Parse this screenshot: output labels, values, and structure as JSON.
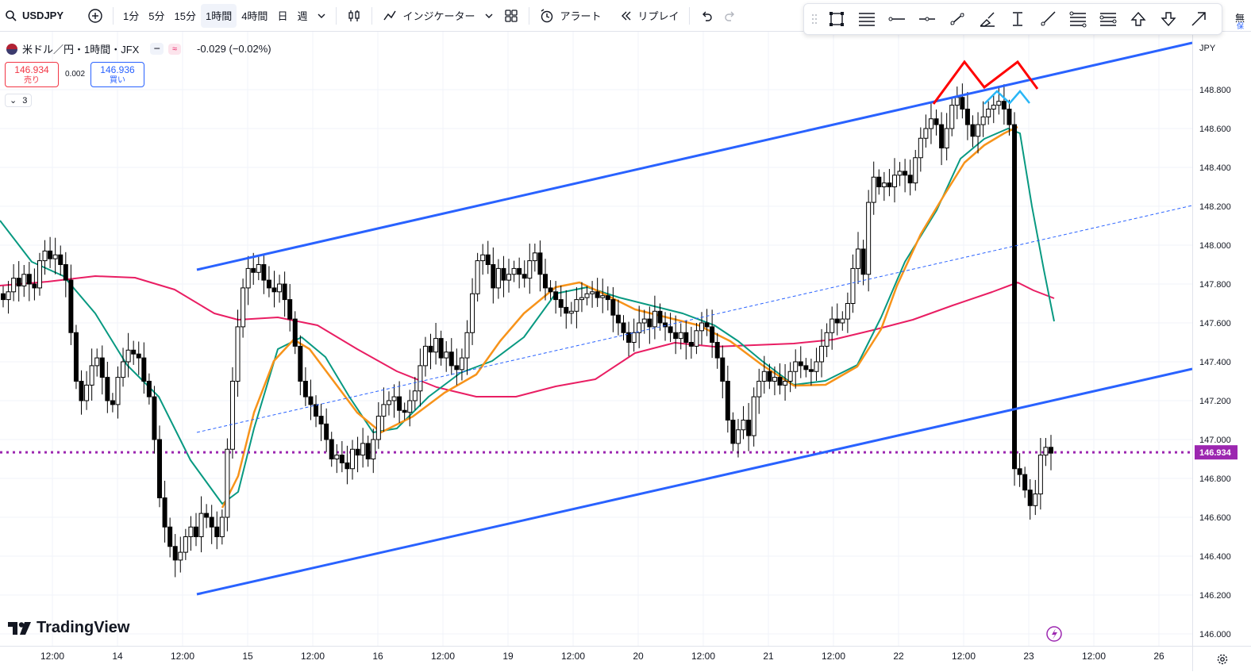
{
  "topbar": {
    "symbol": "USDJPY",
    "intervals": [
      "1分",
      "5分",
      "15分",
      "1時間",
      "4時間",
      "日",
      "週"
    ],
    "active_interval": "1時間",
    "indicators_label": "インジケーター",
    "alert_label": "アラート",
    "replay_label": "リプレイ",
    "right_cut_label": "無",
    "right_cut_sub": "保"
  },
  "legend": {
    "title": "米ドル／円・1時間・JFX",
    "change": "-0.029 (−0.02%)",
    "sell_price": "146.934",
    "sell_label": "売り",
    "buy_price": "146.936",
    "buy_label": "買い",
    "spread": "0.002",
    "indicator_count": "3",
    "pill_symbol": "≈"
  },
  "price_axis": {
    "currency": "JPY",
    "ticks": [
      "148.800",
      "148.600",
      "148.400",
      "148.200",
      "148.000",
      "147.800",
      "147.600",
      "147.400",
      "147.200",
      "147.000",
      "146.800",
      "146.600",
      "146.400",
      "146.200",
      "146.000"
    ],
    "current_price": "146.934",
    "current_color": "#9c27b0"
  },
  "time_axis": {
    "labels": [
      "12:00",
      "14",
      "12:00",
      "15",
      "12:00",
      "16",
      "12:00",
      "19",
      "12:00",
      "20",
      "12:00",
      "21",
      "12:00",
      "22",
      "12:00",
      "23",
      "12:00",
      "26"
    ]
  },
  "brand": {
    "logo_text": "TradingView"
  },
  "colors": {
    "up": "#ffffff",
    "down": "#000000",
    "channel": "#2962ff",
    "ema_fast": "#089981",
    "ema_mid": "#f7931a",
    "ma_slow": "#e91e63",
    "pattern_red": "#ff0000",
    "pattern_blue": "#29b6f6"
  },
  "chart_data": {
    "type": "candlestick",
    "symbol": "USDJPY",
    "ylim": [
      146.0,
      148.9
    ],
    "current_price": 146.934,
    "candles_close": [
      147.72,
      147.76,
      147.83,
      147.79,
      147.85,
      147.8,
      147.78,
      147.92,
      147.97,
      147.93,
      147.95,
      147.9,
      147.82,
      147.55,
      147.3,
      147.2,
      147.28,
      147.38,
      147.42,
      147.32,
      147.2,
      147.18,
      147.32,
      147.4,
      147.46,
      147.44,
      147.42,
      147.3,
      147.22,
      147.0,
      146.7,
      146.55,
      146.45,
      146.38,
      146.42,
      146.5,
      146.55,
      146.5,
      146.62,
      146.6,
      146.55,
      146.5,
      146.6,
      146.95,
      147.3,
      147.58,
      147.78,
      147.88,
      147.86,
      147.9,
      147.82,
      147.78,
      147.76,
      147.8,
      147.72,
      147.62,
      147.48,
      147.3,
      147.22,
      147.18,
      147.12,
      147.08,
      147.0,
      146.9,
      146.92,
      146.88,
      146.85,
      146.95,
      146.92,
      146.98,
      146.9,
      147.0,
      147.12,
      147.18,
      147.2,
      147.22,
      147.15,
      147.14,
      147.2,
      147.25,
      147.38,
      147.48,
      147.45,
      147.52,
      147.42,
      147.45,
      147.38,
      147.36,
      147.42,
      147.55,
      147.75,
      147.92,
      147.95,
      147.9,
      147.78,
      147.88,
      147.82,
      147.85,
      147.88,
      147.85,
      147.83,
      147.92,
      147.96,
      147.85,
      147.78,
      147.76,
      147.72,
      147.68,
      147.65,
      147.66,
      147.72,
      147.73,
      147.75,
      147.76,
      147.73,
      147.74,
      147.72,
      147.64,
      147.6,
      147.55,
      147.5,
      147.55,
      147.6,
      147.62,
      147.58,
      147.66,
      147.6,
      147.58,
      147.55,
      147.52,
      147.55,
      147.5,
      147.48,
      147.56,
      147.6,
      147.58,
      147.5,
      147.42,
      147.3,
      147.1,
      146.98,
      147.05,
      147.1,
      147.02,
      147.22,
      147.3,
      147.35,
      147.3,
      147.32,
      147.28,
      147.3,
      147.35,
      147.4,
      147.38,
      147.36,
      147.35,
      147.4,
      147.48,
      147.55,
      147.62,
      147.6,
      147.62,
      147.7,
      147.88,
      147.98,
      147.85,
      148.22,
      148.35,
      148.3,
      148.32,
      148.3,
      148.36,
      148.38,
      148.36,
      148.32,
      148.45,
      148.55,
      148.6,
      148.65,
      148.62,
      148.5,
      148.6,
      148.72,
      148.76,
      148.7,
      148.62,
      148.56,
      148.62,
      148.66,
      148.7,
      148.72,
      148.74,
      148.7,
      148.62,
      146.85,
      146.82,
      146.74,
      146.66,
      146.72,
      146.92,
      146.96,
      146.93
    ],
    "channel_upper": [
      [
        248,
        340
      ],
      [
        1502,
        54
      ]
    ],
    "channel_lower": [
      [
        248,
        749
      ],
      [
        1502,
        465
      ]
    ],
    "channel_mid": [
      [
        248,
        545
      ],
      [
        1502,
        259
      ]
    ],
    "ma_slow_points": [
      [
        0,
        360
      ],
      [
        60,
        355
      ],
      [
        120,
        348
      ],
      [
        170,
        350
      ],
      [
        220,
        365
      ],
      [
        270,
        395
      ],
      [
        300,
        403
      ],
      [
        350,
        400
      ],
      [
        400,
        410
      ],
      [
        450,
        440
      ],
      [
        500,
        468
      ],
      [
        550,
        488
      ],
      [
        600,
        500
      ],
      [
        650,
        500
      ],
      [
        700,
        487
      ],
      [
        750,
        478
      ],
      [
        800,
        445
      ],
      [
        850,
        432
      ],
      [
        900,
        437
      ],
      [
        950,
        435
      ],
      [
        1000,
        433
      ],
      [
        1050,
        428
      ],
      [
        1100,
        416
      ],
      [
        1150,
        403
      ],
      [
        1200,
        385
      ],
      [
        1250,
        368
      ],
      [
        1282,
        356
      ],
      [
        1302,
        366
      ],
      [
        1328,
        376
      ]
    ],
    "ema_fast_points": [
      [
        0,
        278
      ],
      [
        40,
        330
      ],
      [
        80,
        348
      ],
      [
        120,
        395
      ],
      [
        160,
        460
      ],
      [
        200,
        500
      ],
      [
        240,
        580
      ],
      [
        280,
        635
      ],
      [
        300,
        620
      ],
      [
        320,
        540
      ],
      [
        350,
        440
      ],
      [
        380,
        425
      ],
      [
        410,
        450
      ],
      [
        440,
        500
      ],
      [
        470,
        545
      ],
      [
        500,
        540
      ],
      [
        540,
        500
      ],
      [
        580,
        470
      ],
      [
        620,
        455
      ],
      [
        660,
        425
      ],
      [
        700,
        370
      ],
      [
        740,
        362
      ],
      [
        780,
        375
      ],
      [
        820,
        385
      ],
      [
        860,
        395
      ],
      [
        900,
        410
      ],
      [
        930,
        430
      ],
      [
        960,
        455
      ],
      [
        1000,
        485
      ],
      [
        1040,
        480
      ],
      [
        1080,
        460
      ],
      [
        1110,
        400
      ],
      [
        1140,
        330
      ],
      [
        1180,
        265
      ],
      [
        1210,
        200
      ],
      [
        1240,
        175
      ],
      [
        1270,
        162
      ],
      [
        1285,
        168
      ],
      [
        1300,
        260
      ],
      [
        1315,
        340
      ],
      [
        1328,
        405
      ]
    ],
    "ema_mid_points": [
      [
        280,
        640
      ],
      [
        300,
        600
      ],
      [
        320,
        520
      ],
      [
        345,
        455
      ],
      [
        370,
        428
      ],
      [
        390,
        440
      ],
      [
        420,
        480
      ],
      [
        450,
        520
      ],
      [
        480,
        545
      ],
      [
        520,
        525
      ],
      [
        560,
        495
      ],
      [
        600,
        472
      ],
      [
        630,
        430
      ],
      [
        660,
        395
      ],
      [
        700,
        362
      ],
      [
        730,
        356
      ],
      [
        760,
        370
      ],
      [
        800,
        390
      ],
      [
        840,
        400
      ],
      [
        880,
        410
      ],
      [
        920,
        430
      ],
      [
        960,
        460
      ],
      [
        1000,
        486
      ],
      [
        1040,
        485
      ],
      [
        1080,
        462
      ],
      [
        1110,
        415
      ],
      [
        1130,
        360
      ],
      [
        1160,
        295
      ],
      [
        1190,
        245
      ],
      [
        1215,
        205
      ],
      [
        1240,
        183
      ],
      [
        1265,
        168
      ],
      [
        1282,
        160
      ]
    ],
    "pattern_red": [
      [
        1176,
        131
      ],
      [
        1215,
        78
      ],
      [
        1240,
        110
      ],
      [
        1282,
        78
      ],
      [
        1307,
        112
      ]
    ],
    "pattern_blue": [
      [
        1240,
        131
      ],
      [
        1256,
        115
      ],
      [
        1272,
        130
      ],
      [
        1285,
        115
      ],
      [
        1297,
        130
      ]
    ]
  }
}
